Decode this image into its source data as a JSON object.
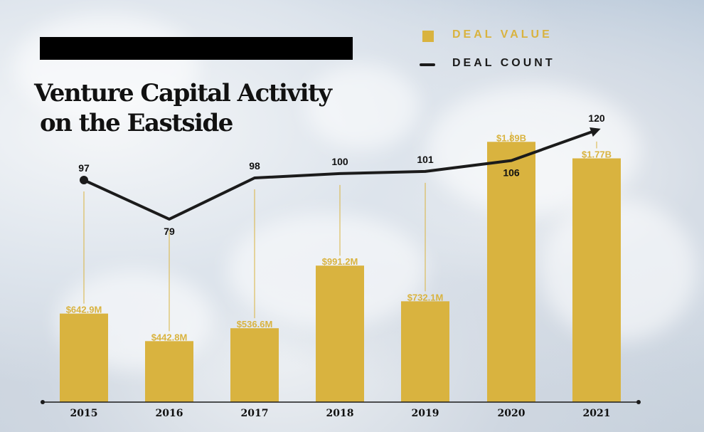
{
  "title": {
    "line1": "Venture Capital Activity",
    "line2": "on the Eastside"
  },
  "legend": {
    "deal_value": "DEAL VALUE",
    "deal_count": "DEAL COUNT"
  },
  "colors": {
    "bar": "#d9b33f",
    "line": "#1b1b1b",
    "axis": "#1b1b1b",
    "leader": "#d9b33f"
  },
  "chart_data": {
    "type": "bar",
    "categories": [
      "2015",
      "2016",
      "2017",
      "2018",
      "2019",
      "2020",
      "2021"
    ],
    "series": [
      {
        "name": "DEAL VALUE",
        "type": "bar",
        "values": [
          642.9,
          442.8,
          536.6,
          991.2,
          732.1,
          1890,
          1770
        ],
        "unit": "$M",
        "labels": [
          "$642.9M",
          "$442.8M",
          "$536.6M",
          "$991.2M",
          "$732.1M",
          "$1.89B",
          "$1.77B"
        ]
      },
      {
        "name": "DEAL COUNT",
        "type": "line",
        "values": [
          97,
          79,
          98,
          100,
          101,
          106,
          120
        ],
        "labels": [
          "97",
          "79",
          "98",
          "100",
          "101",
          "106",
          "120"
        ]
      }
    ],
    "xlabel": "",
    "ylabel": "",
    "grid": false,
    "legend": "top-right"
  }
}
